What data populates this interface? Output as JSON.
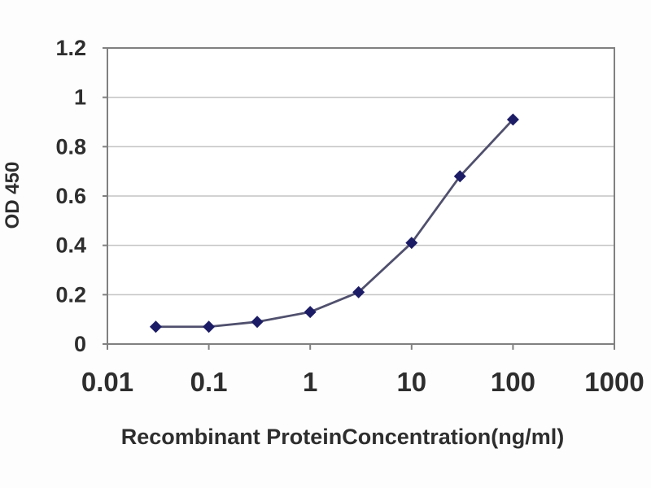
{
  "figure": {
    "description": "ELISA standard curve: OD 450 versus recombinant protein concentration on a logarithmic x-axis"
  },
  "chart_data": {
    "type": "line",
    "title": "",
    "xlabel": "Recombinant ProteinConcentration(ng/ml)",
    "ylabel": "OD 450",
    "x_scale": "log",
    "y_scale": "linear",
    "x": [
      0.03,
      0.1,
      0.3,
      1,
      3,
      10,
      30,
      100
    ],
    "y": [
      0.07,
      0.07,
      0.09,
      0.13,
      0.21,
      0.41,
      0.68,
      0.91
    ],
    "xlim": [
      0.01,
      1000
    ],
    "ylim": [
      0,
      1.2
    ],
    "x_tick_values": [
      0.01,
      0.1,
      1,
      10,
      100,
      1000
    ],
    "x_tick_labels": [
      "0.01",
      "0.1",
      "1",
      "10",
      "100",
      "1000"
    ],
    "y_tick_values": [
      0,
      0.2,
      0.4,
      0.6,
      0.8,
      1,
      1.2
    ],
    "y_tick_labels": [
      "0",
      "0.2",
      "0.4",
      "0.6",
      "0.8",
      "1",
      "1.2"
    ],
    "grid": "horizontal-only",
    "legend": "none",
    "marker": "diamond",
    "colors": {
      "line": "#50506e",
      "marker": "#1c1c66",
      "axis_frame": "#808080",
      "gridline": "#c3c3c3",
      "text": "#2e2e2e",
      "background": "#fdfdfd",
      "plot_background": "#ffffff"
    }
  }
}
